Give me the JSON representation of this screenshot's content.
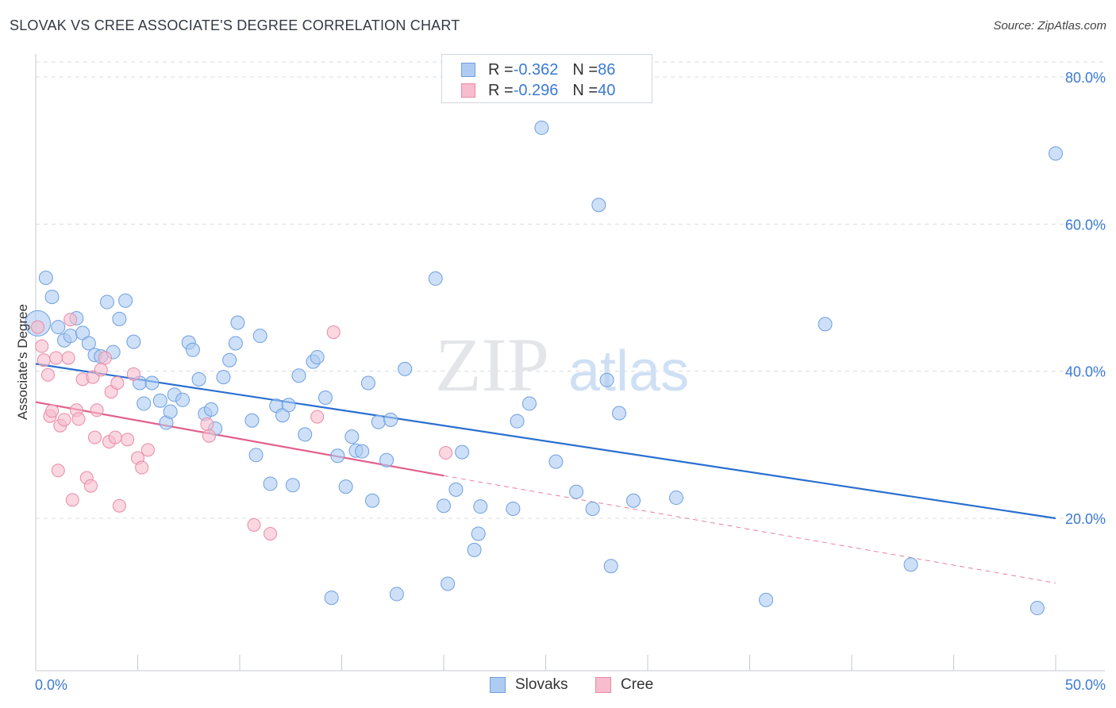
{
  "header": {
    "title": "SLOVAK VS CREE ASSOCIATE'S DEGREE CORRELATION CHART",
    "source": "Source: ZipAtlas.com"
  },
  "watermark": {
    "zip": "ZIP",
    "atlas": "atlas"
  },
  "legend_top": {
    "rows": [
      {
        "r_label": "R = ",
        "r_value": "-0.362",
        "n_label": "N = ",
        "n_value": "86",
        "color": "#aecbf2"
      },
      {
        "r_label": "R = ",
        "r_value": "-0.296",
        "n_label": "N = ",
        "n_value": "40",
        "color": "#f7bccd"
      }
    ]
  },
  "legend_bottom": {
    "items": [
      "Slovaks",
      "Cree"
    ]
  },
  "colors": {
    "slovak_fill": "#aecbf2",
    "slovak_stroke": "#6e9fe0",
    "slovak_line": "#2a6fd0",
    "cree_fill": "#f7bccd",
    "cree_stroke": "#e98aa7",
    "cree_line": "#e2608c",
    "grid": "#d8dde3",
    "tick_label": "#3b7ad3"
  },
  "chart_data": {
    "type": "scatter",
    "title": "SLOVAK VS CREE ASSOCIATE'S DEGREE CORRELATION CHART",
    "xlabel": "",
    "ylabel": "Associate's Degree",
    "xlim": [
      0,
      50
    ],
    "ylim": [
      0,
      82
    ],
    "x_tick_labels": [
      "0.0%",
      "50.0%"
    ],
    "y_ticks": [
      20,
      40,
      60,
      80
    ],
    "y_tick_labels": [
      "20.0%",
      "40.0%",
      "60.0%",
      "80.0%"
    ],
    "grid": true,
    "legend_position": "top-center",
    "series": [
      {
        "name": "Slovaks",
        "r": -0.362,
        "n": 86,
        "trend": {
          "x": [
            0,
            50
          ],
          "y": [
            41.0,
            20.0
          ]
        },
        "points": [
          {
            "x": 0.1,
            "y": 46.5,
            "big": true
          },
          {
            "x": 0.5,
            "y": 52.7
          },
          {
            "x": 0.8,
            "y": 50.1
          },
          {
            "x": 1.1,
            "y": 46.0
          },
          {
            "x": 1.4,
            "y": 44.2
          },
          {
            "x": 1.7,
            "y": 44.8
          },
          {
            "x": 2.0,
            "y": 47.2
          },
          {
            "x": 2.3,
            "y": 45.2
          },
          {
            "x": 2.6,
            "y": 43.8
          },
          {
            "x": 2.9,
            "y": 42.2
          },
          {
            "x": 3.2,
            "y": 42.0
          },
          {
            "x": 3.5,
            "y": 49.4
          },
          {
            "x": 3.8,
            "y": 42.6
          },
          {
            "x": 4.1,
            "y": 47.1
          },
          {
            "x": 4.4,
            "y": 49.6
          },
          {
            "x": 4.8,
            "y": 44.0
          },
          {
            "x": 5.1,
            "y": 38.4
          },
          {
            "x": 5.3,
            "y": 35.6
          },
          {
            "x": 5.7,
            "y": 38.4
          },
          {
            "x": 6.1,
            "y": 36.0
          },
          {
            "x": 6.4,
            "y": 33.0
          },
          {
            "x": 6.6,
            "y": 34.5
          },
          {
            "x": 6.8,
            "y": 36.8
          },
          {
            "x": 7.2,
            "y": 36.1
          },
          {
            "x": 7.5,
            "y": 43.9
          },
          {
            "x": 7.7,
            "y": 42.9
          },
          {
            "x": 8.0,
            "y": 38.9
          },
          {
            "x": 8.3,
            "y": 34.2
          },
          {
            "x": 8.6,
            "y": 34.8
          },
          {
            "x": 8.8,
            "y": 32.2
          },
          {
            "x": 9.2,
            "y": 39.2
          },
          {
            "x": 9.5,
            "y": 41.5
          },
          {
            "x": 9.8,
            "y": 43.8
          },
          {
            "x": 9.9,
            "y": 46.6
          },
          {
            "x": 10.6,
            "y": 33.3
          },
          {
            "x": 10.8,
            "y": 28.6
          },
          {
            "x": 11.0,
            "y": 44.8
          },
          {
            "x": 11.5,
            "y": 24.7
          },
          {
            "x": 11.8,
            "y": 35.3
          },
          {
            "x": 12.1,
            "y": 34.0
          },
          {
            "x": 12.4,
            "y": 35.4
          },
          {
            "x": 12.6,
            "y": 24.5
          },
          {
            "x": 12.9,
            "y": 39.4
          },
          {
            "x": 13.2,
            "y": 31.4
          },
          {
            "x": 13.6,
            "y": 41.3
          },
          {
            "x": 13.8,
            "y": 41.9
          },
          {
            "x": 14.2,
            "y": 36.4
          },
          {
            "x": 14.5,
            "y": 9.2
          },
          {
            "x": 14.8,
            "y": 28.5
          },
          {
            "x": 15.2,
            "y": 24.3
          },
          {
            "x": 15.5,
            "y": 31.1
          },
          {
            "x": 15.7,
            "y": 29.2
          },
          {
            "x": 16.0,
            "y": 29.1
          },
          {
            "x": 16.3,
            "y": 38.4
          },
          {
            "x": 16.5,
            "y": 22.4
          },
          {
            "x": 16.8,
            "y": 33.1
          },
          {
            "x": 17.2,
            "y": 27.9
          },
          {
            "x": 17.4,
            "y": 33.4
          },
          {
            "x": 17.7,
            "y": 9.7
          },
          {
            "x": 18.1,
            "y": 40.3
          },
          {
            "x": 19.6,
            "y": 52.6
          },
          {
            "x": 20.0,
            "y": 21.7
          },
          {
            "x": 20.2,
            "y": 11.1
          },
          {
            "x": 20.6,
            "y": 23.9
          },
          {
            "x": 20.9,
            "y": 29.0
          },
          {
            "x": 21.5,
            "y": 15.7
          },
          {
            "x": 21.8,
            "y": 21.6
          },
          {
            "x": 21.7,
            "y": 17.9
          },
          {
            "x": 23.4,
            "y": 21.3
          },
          {
            "x": 23.6,
            "y": 33.2
          },
          {
            "x": 24.2,
            "y": 35.6
          },
          {
            "x": 24.8,
            "y": 73.1
          },
          {
            "x": 25.5,
            "y": 27.7
          },
          {
            "x": 26.5,
            "y": 23.6
          },
          {
            "x": 27.3,
            "y": 21.3
          },
          {
            "x": 27.6,
            "y": 62.6
          },
          {
            "x": 28.0,
            "y": 38.8
          },
          {
            "x": 28.2,
            "y": 13.5
          },
          {
            "x": 28.6,
            "y": 34.3
          },
          {
            "x": 29.3,
            "y": 22.4
          },
          {
            "x": 31.4,
            "y": 22.8
          },
          {
            "x": 35.8,
            "y": 8.9
          },
          {
            "x": 38.7,
            "y": 46.4
          },
          {
            "x": 42.9,
            "y": 13.7
          },
          {
            "x": 49.1,
            "y": 7.8
          },
          {
            "x": 50.0,
            "y": 69.6
          }
        ]
      },
      {
        "name": "Cree",
        "r": -0.296,
        "n": 40,
        "trend": {
          "x": [
            0,
            20
          ],
          "y": [
            35.8,
            25.8
          ]
        },
        "trend_dashed": {
          "x": [
            20,
            50
          ],
          "y": [
            25.8,
            11.2
          ]
        },
        "points": [
          {
            "x": 0.1,
            "y": 46.0
          },
          {
            "x": 0.3,
            "y": 43.4
          },
          {
            "x": 0.4,
            "y": 41.5
          },
          {
            "x": 0.6,
            "y": 39.5
          },
          {
            "x": 0.7,
            "y": 33.9
          },
          {
            "x": 0.8,
            "y": 34.6
          },
          {
            "x": 1.0,
            "y": 41.8
          },
          {
            "x": 1.1,
            "y": 26.5
          },
          {
            "x": 1.2,
            "y": 32.6
          },
          {
            "x": 1.4,
            "y": 33.4
          },
          {
            "x": 1.6,
            "y": 41.8
          },
          {
            "x": 1.7,
            "y": 47.0
          },
          {
            "x": 1.8,
            "y": 22.5
          },
          {
            "x": 2.0,
            "y": 34.7
          },
          {
            "x": 2.1,
            "y": 33.5
          },
          {
            "x": 2.3,
            "y": 38.9
          },
          {
            "x": 2.5,
            "y": 25.5
          },
          {
            "x": 2.7,
            "y": 24.4
          },
          {
            "x": 2.8,
            "y": 39.2
          },
          {
            "x": 2.9,
            "y": 31.0
          },
          {
            "x": 3.0,
            "y": 34.7
          },
          {
            "x": 3.2,
            "y": 40.2
          },
          {
            "x": 3.4,
            "y": 41.8
          },
          {
            "x": 3.6,
            "y": 30.4
          },
          {
            "x": 3.7,
            "y": 37.2
          },
          {
            "x": 3.9,
            "y": 31.0
          },
          {
            "x": 4.0,
            "y": 38.4
          },
          {
            "x": 4.1,
            "y": 21.7
          },
          {
            "x": 4.5,
            "y": 30.7
          },
          {
            "x": 4.8,
            "y": 39.6
          },
          {
            "x": 5.0,
            "y": 28.2
          },
          {
            "x": 5.2,
            "y": 26.9
          },
          {
            "x": 5.5,
            "y": 29.3
          },
          {
            "x": 8.4,
            "y": 32.8
          },
          {
            "x": 8.5,
            "y": 31.2
          },
          {
            "x": 10.7,
            "y": 19.1
          },
          {
            "x": 11.5,
            "y": 17.9
          },
          {
            "x": 13.8,
            "y": 33.8
          },
          {
            "x": 14.6,
            "y": 45.3
          },
          {
            "x": 20.1,
            "y": 28.9
          }
        ]
      }
    ]
  }
}
